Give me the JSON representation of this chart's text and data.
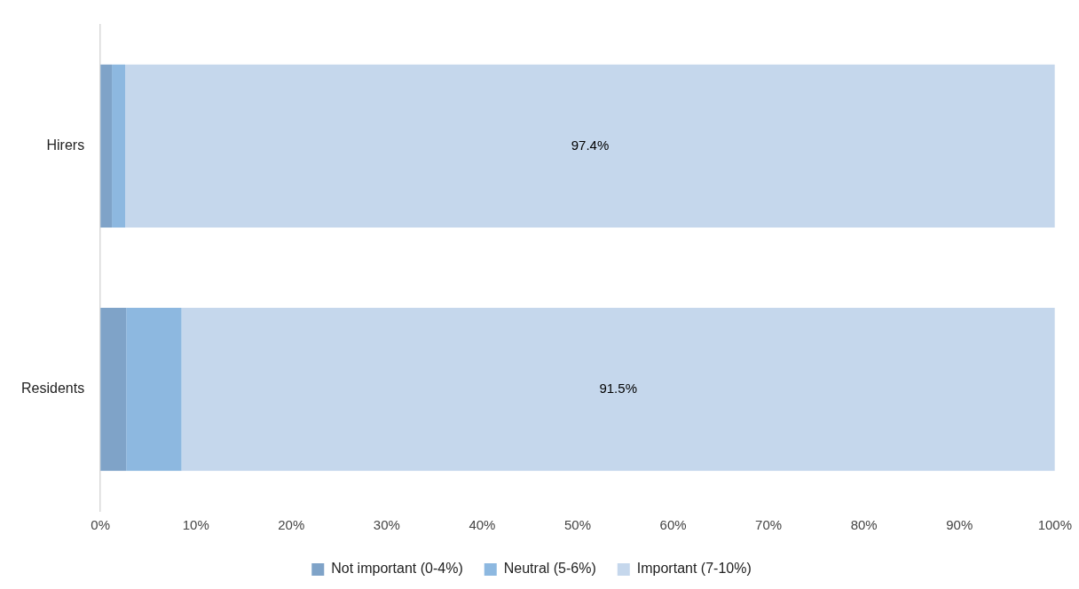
{
  "chart_data": {
    "type": "bar",
    "orientation": "horizontal",
    "stacked": true,
    "categories": [
      "Hirers",
      "Residents"
    ],
    "series": [
      {
        "name": "Not important (0-4%)",
        "color": "#7fa3c8",
        "values": [
          1.2,
          2.7
        ]
      },
      {
        "name": "Neutral (5-6%)",
        "color": "#8db8e0",
        "values": [
          1.4,
          5.8
        ]
      },
      {
        "name": "Important (7-10%)",
        "color": "#c5d7ec",
        "values": [
          97.4,
          91.5
        ],
        "value_labels": [
          "97.4%",
          "91.5%"
        ]
      }
    ],
    "xlim": [
      0,
      100
    ],
    "xticks": [
      {
        "value": 0,
        "label": "0%"
      },
      {
        "value": 10,
        "label": "10%"
      },
      {
        "value": 20,
        "label": "20%"
      },
      {
        "value": 30,
        "label": "30%"
      },
      {
        "value": 40,
        "label": "40%"
      },
      {
        "value": 50,
        "label": "50%"
      },
      {
        "value": 60,
        "label": "60%"
      },
      {
        "value": 70,
        "label": "70%"
      },
      {
        "value": 80,
        "label": "80%"
      },
      {
        "value": 90,
        "label": "90%"
      },
      {
        "value": 100,
        "label": "100%"
      }
    ],
    "grid": false,
    "legend": "bottom"
  }
}
